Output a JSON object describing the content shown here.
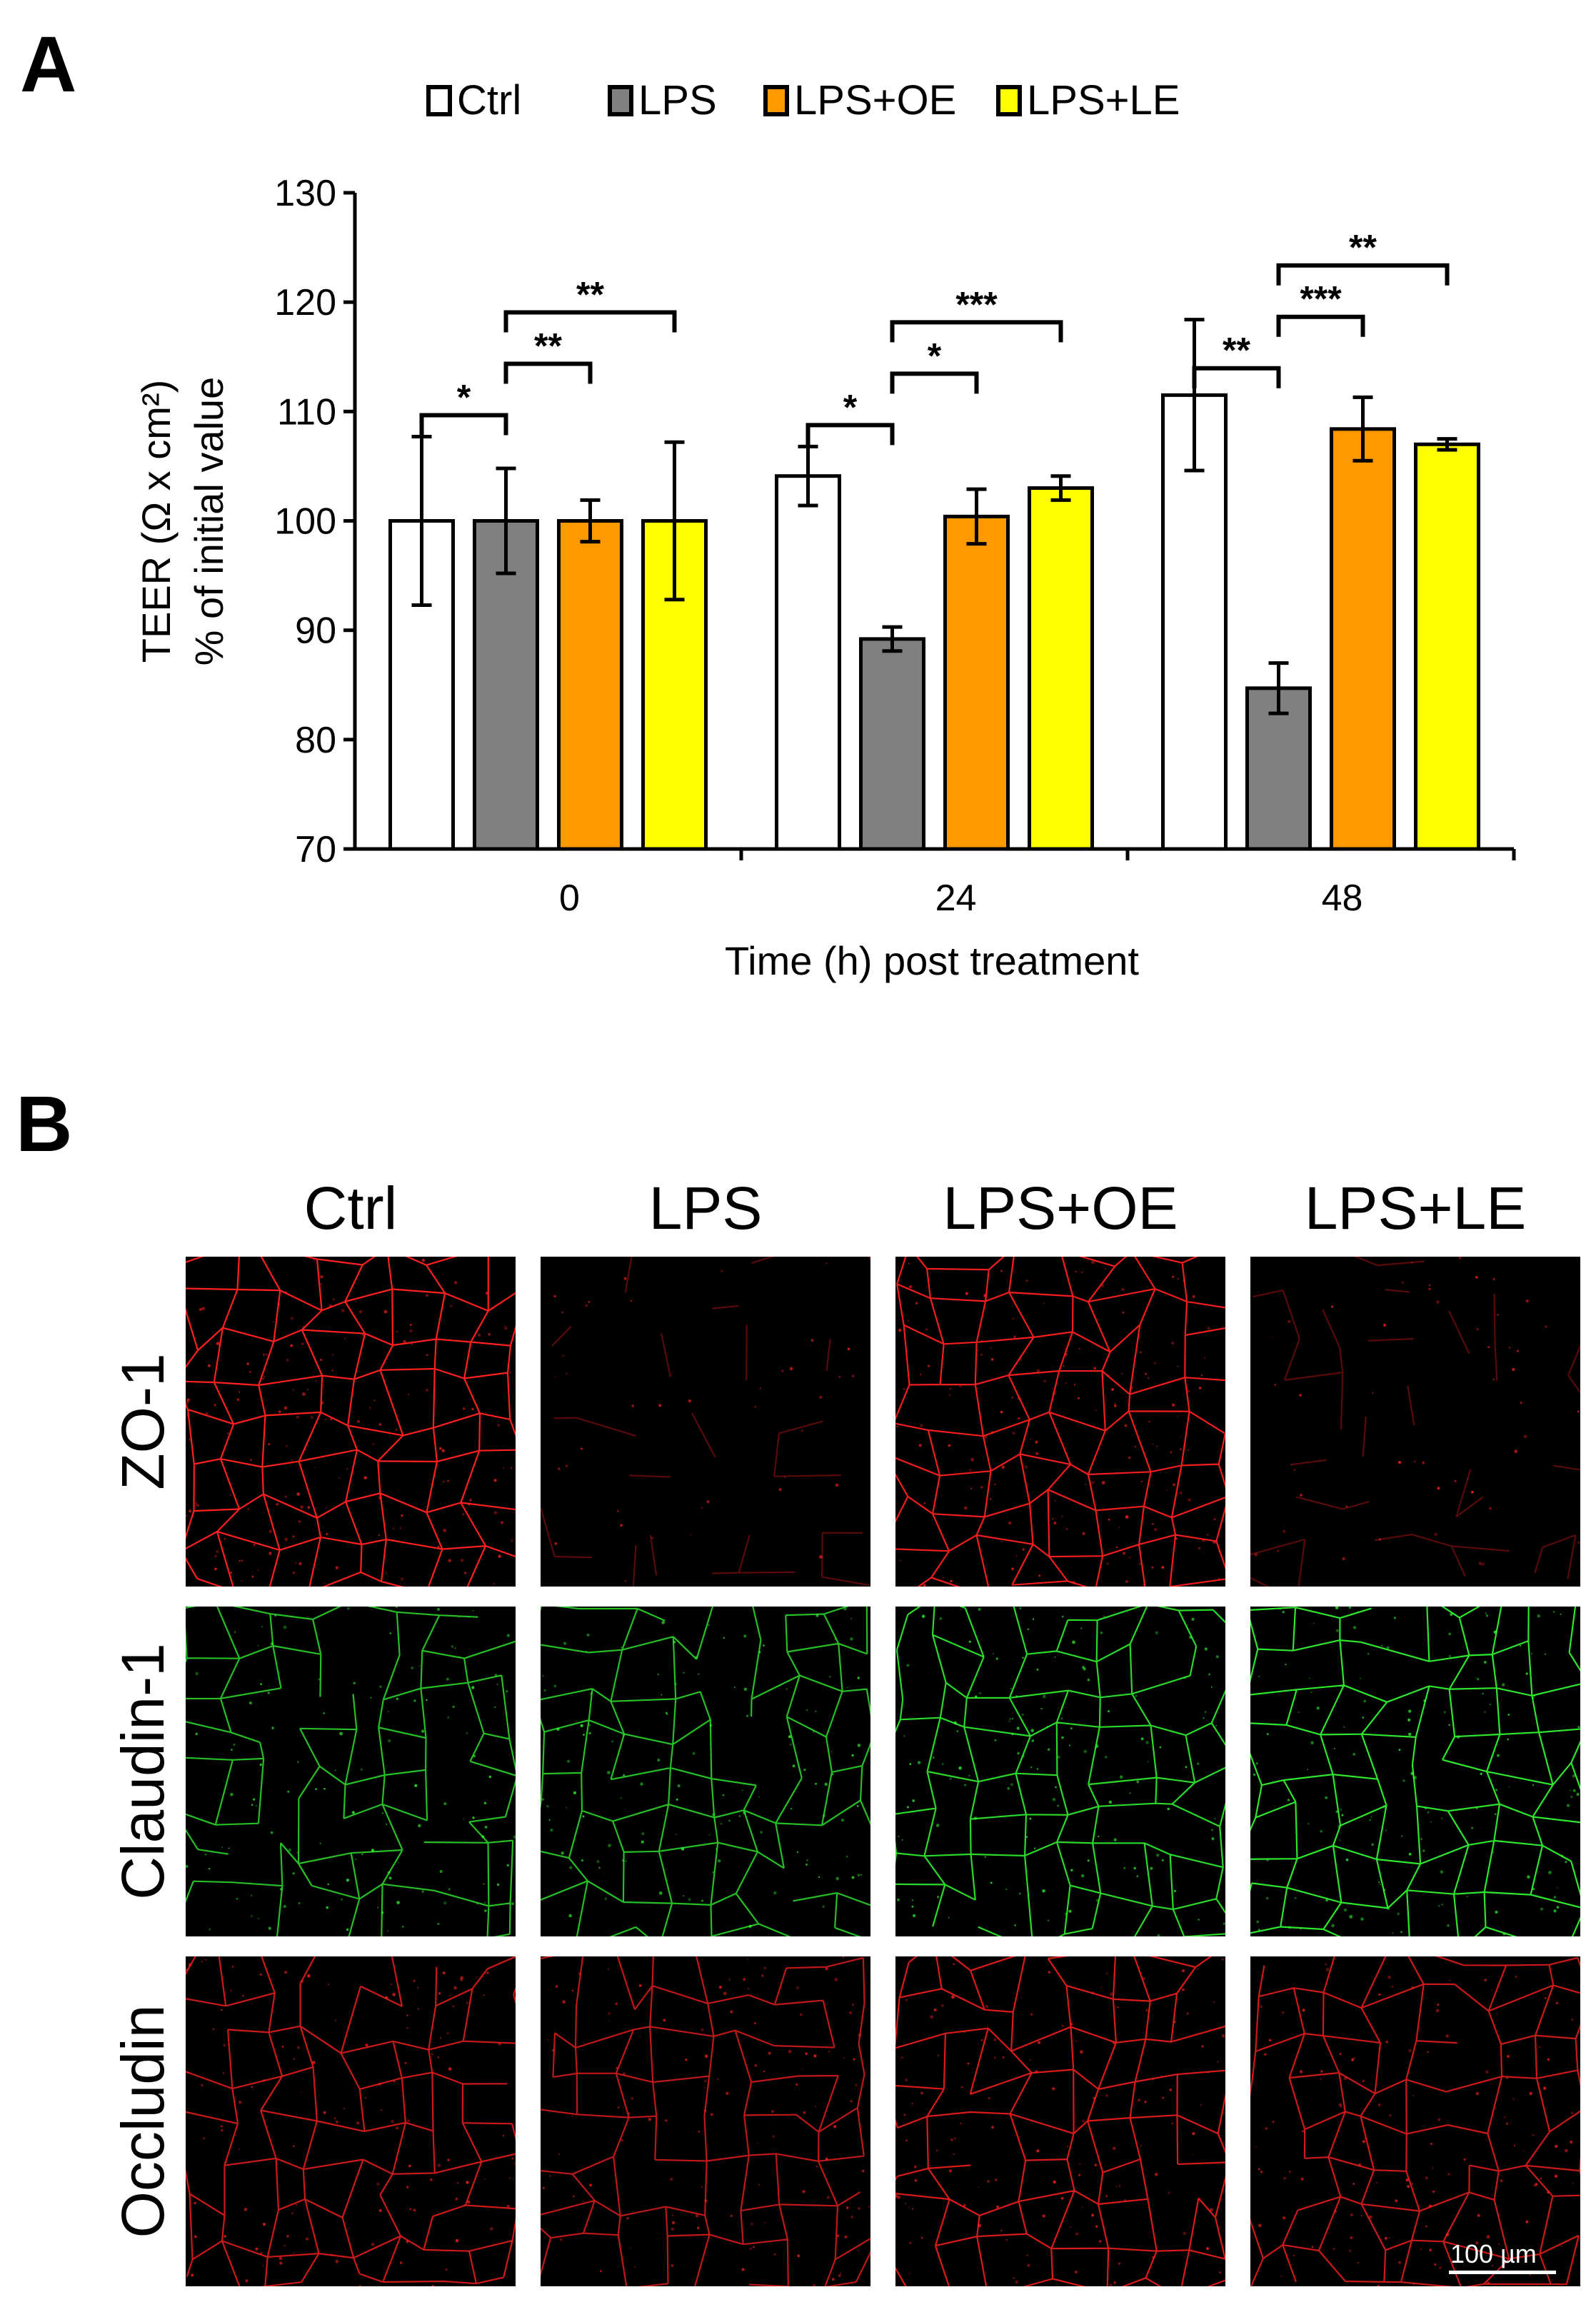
{
  "panel_a_label": "A",
  "panel_b_label": "B",
  "chart_data": {
    "type": "bar",
    "categories": [
      "0",
      "24",
      "48"
    ],
    "series": [
      {
        "name": "Ctrl",
        "color": "#ffffff",
        "values": [
          100,
          104.1,
          111.5
        ],
        "errors": [
          7.7,
          2.7,
          6.9
        ]
      },
      {
        "name": "LPS",
        "color": "#808080",
        "values": [
          100,
          89.2,
          84.7
        ],
        "errors": [
          4.8,
          1.1,
          2.3
        ]
      },
      {
        "name": "LPS+OE",
        "color": "#ff9900",
        "values": [
          100,
          100.4,
          108.4
        ],
        "errors": [
          1.9,
          2.5,
          2.9
        ]
      },
      {
        "name": "LPS+LE",
        "color": "#ffff00",
        "values": [
          100,
          103.0,
          107.0
        ],
        "errors": [
          7.2,
          1.1,
          0.5
        ]
      }
    ],
    "ylabel_line1": "TEER (Ω x cm²)",
    "ylabel_line2": "% of initial value",
    "xlabel": "Time (h) post treatment",
    "ylim": [
      70,
      130
    ],
    "yticks": [
      70,
      80,
      90,
      100,
      110,
      120,
      130
    ],
    "legend_position": "top",
    "significance": [
      {
        "group": 0,
        "from": 0,
        "to": 1,
        "label": "*",
        "level": 0
      },
      {
        "group": 0,
        "from": 1,
        "to": 2,
        "label": "**",
        "level": 1
      },
      {
        "group": 0,
        "from": 1,
        "to": 3,
        "label": "**",
        "level": 2
      },
      {
        "group": 1,
        "from": 0,
        "to": 1,
        "label": "*",
        "level": 0
      },
      {
        "group": 1,
        "from": 1,
        "to": 2,
        "label": "*",
        "level": 1
      },
      {
        "group": 1,
        "from": 1,
        "to": 3,
        "label": "***",
        "level": 2
      },
      {
        "group": 2,
        "from": 0,
        "to": 1,
        "label": "**",
        "level": 0
      },
      {
        "group": 2,
        "from": 1,
        "to": 2,
        "label": "***",
        "level": 1
      },
      {
        "group": 2,
        "from": 1,
        "to": 3,
        "label": "**",
        "level": 2
      }
    ]
  },
  "micrograph_grid": {
    "columns": [
      "Ctrl",
      "LPS",
      "LPS+OE",
      "LPS+LE"
    ],
    "rows": [
      {
        "label": "ZO-1",
        "color": "#ff2020",
        "intensity": [
          1.0,
          0.25,
          0.95,
          0.3
        ]
      },
      {
        "label": "Claudin-1",
        "color": "#33ff33",
        "intensity": [
          0.75,
          0.75,
          0.85,
          0.9
        ]
      },
      {
        "label": "Occludin",
        "color": "#ff2020",
        "intensity": [
          0.8,
          0.75,
          0.85,
          0.8
        ]
      }
    ],
    "scale_bar": "100 µm"
  }
}
